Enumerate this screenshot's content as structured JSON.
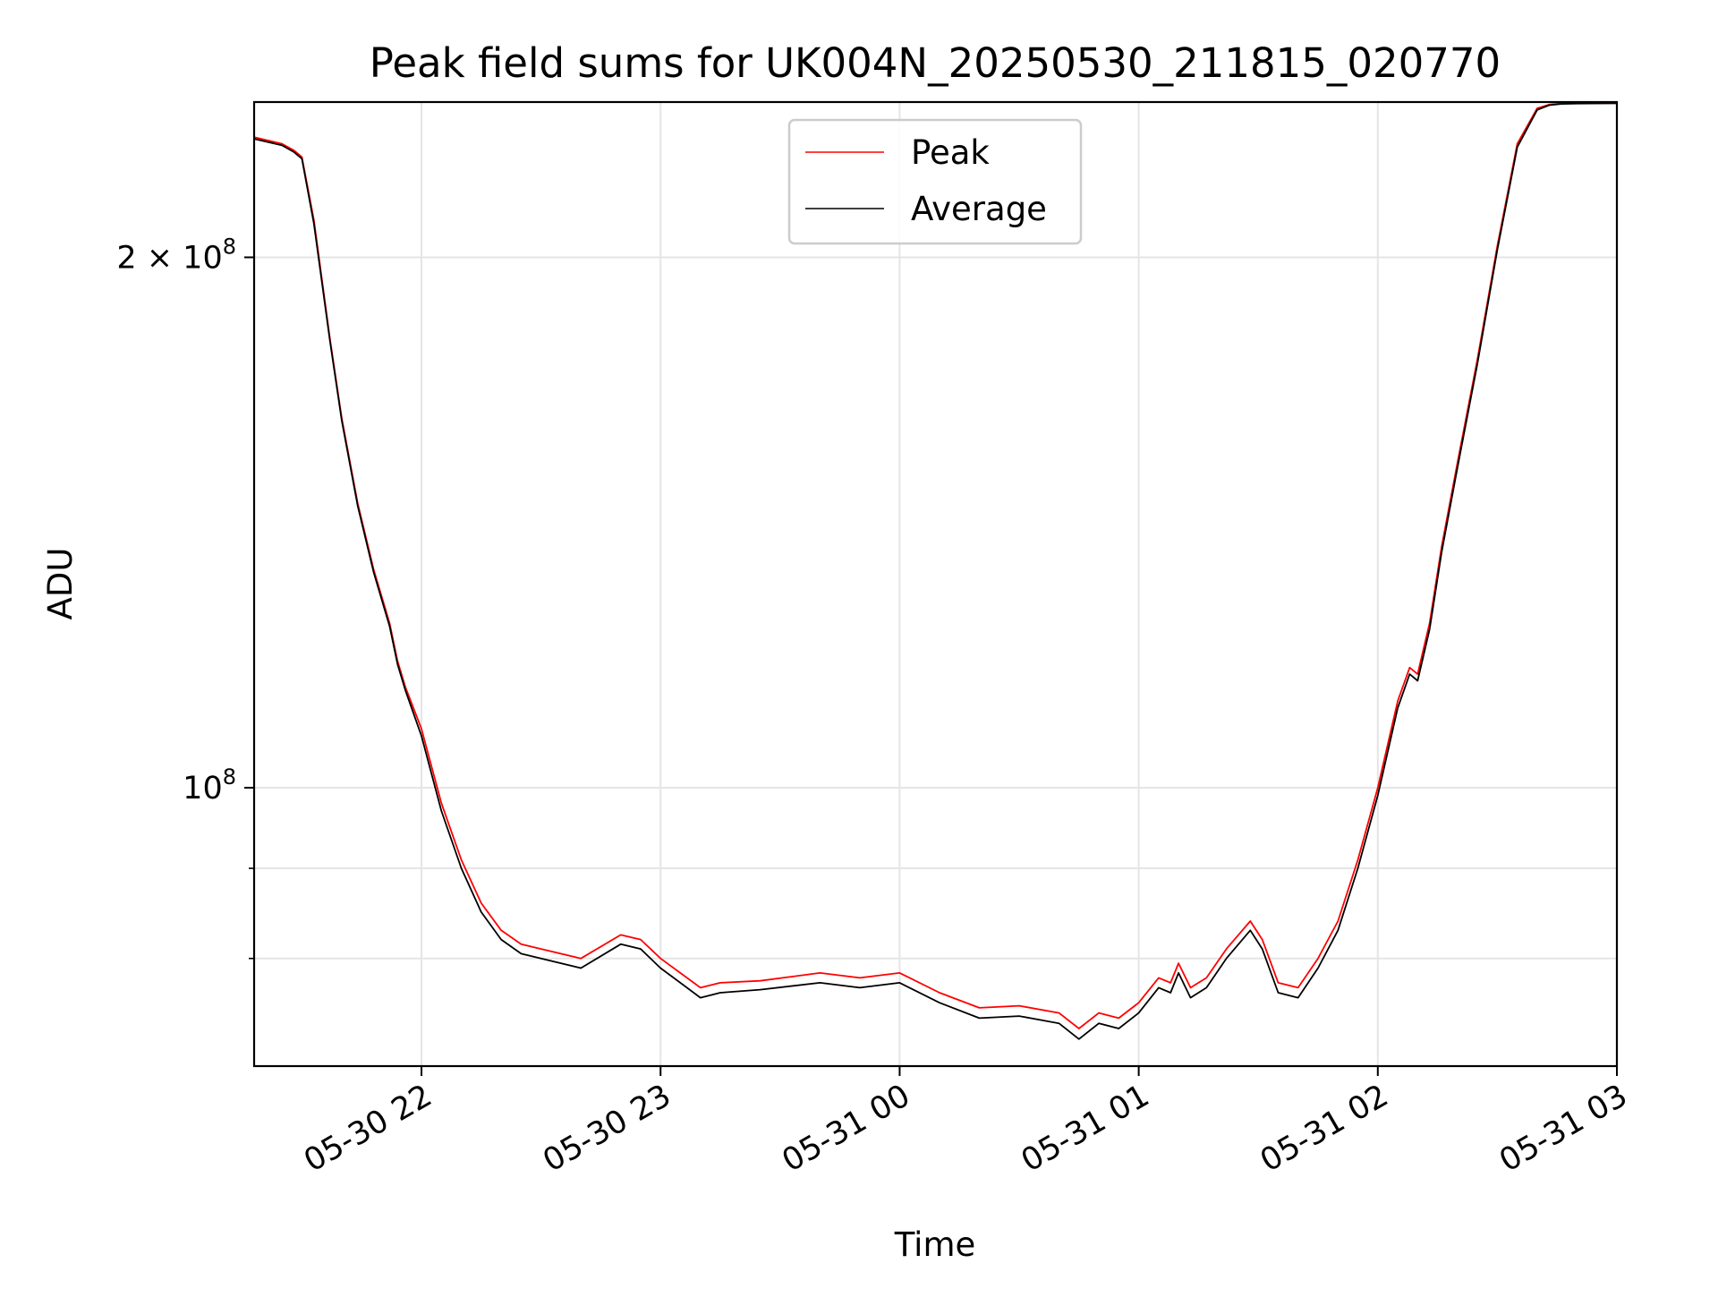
{
  "chart_data": {
    "type": "line",
    "title": "Peak field sums for UK004N_20250530_211815_020770",
    "xlabel": "Time",
    "ylabel": "ADU",
    "x_scale": "time",
    "y_scale": "log",
    "xlim": [
      "2025-05-30 21:18",
      "2025-05-31 03:00"
    ],
    "ylim": [
      69500000,
      245000000
    ],
    "x_ticks": [
      {
        "value": "2025-05-30 22:00",
        "label": "05-30 22"
      },
      {
        "value": "2025-05-30 23:00",
        "label": "05-30 23"
      },
      {
        "value": "2025-05-31 00:00",
        "label": "05-31 00"
      },
      {
        "value": "2025-05-31 01:00",
        "label": "05-31 01"
      },
      {
        "value": "2025-05-31 02:00",
        "label": "05-31 02"
      },
      {
        "value": "2025-05-31 03:00",
        "label": "05-31 03"
      }
    ],
    "y_major_ticks": [
      {
        "value": 100000000,
        "base": "10",
        "exp": "8",
        "mant": ""
      },
      {
        "value": 200000000,
        "base": "10",
        "exp": "8",
        "mant": "2 × "
      }
    ],
    "y_minor_ticks": [
      80000000,
      90000000
    ],
    "grid": true,
    "legend_position": "top-center",
    "x": [
      "2025-05-30 21:18",
      "2025-05-30 21:25",
      "2025-05-30 21:28",
      "2025-05-30 21:30",
      "2025-05-30 21:33",
      "2025-05-30 21:37",
      "2025-05-30 21:40",
      "2025-05-30 21:44",
      "2025-05-30 21:48",
      "2025-05-30 21:52",
      "2025-05-30 21:54",
      "2025-05-30 21:56",
      "2025-05-30 22:00",
      "2025-05-30 22:05",
      "2025-05-30 22:10",
      "2025-05-30 22:15",
      "2025-05-30 22:20",
      "2025-05-30 22:25",
      "2025-05-30 22:30",
      "2025-05-30 22:40",
      "2025-05-30 22:50",
      "2025-05-30 22:55",
      "2025-05-30 23:00",
      "2025-05-30 23:10",
      "2025-05-30 23:15",
      "2025-05-30 23:25",
      "2025-05-30 23:40",
      "2025-05-30 23:50",
      "2025-05-31 00:00",
      "2025-05-31 00:10",
      "2025-05-31 00:20",
      "2025-05-31 00:30",
      "2025-05-31 00:40",
      "2025-05-31 00:45",
      "2025-05-31 00:50",
      "2025-05-31 00:55",
      "2025-05-31 01:00",
      "2025-05-31 01:05",
      "2025-05-31 01:08",
      "2025-05-31 01:10",
      "2025-05-31 01:13",
      "2025-05-31 01:17",
      "2025-05-31 01:22",
      "2025-05-31 01:28",
      "2025-05-31 01:31",
      "2025-05-31 01:35",
      "2025-05-31 01:40",
      "2025-05-31 01:45",
      "2025-05-31 01:50",
      "2025-05-31 01:55",
      "2025-05-31 02:00",
      "2025-05-31 02:05",
      "2025-05-31 02:08",
      "2025-05-31 02:10",
      "2025-05-31 02:13",
      "2025-05-31 02:16",
      "2025-05-31 02:20",
      "2025-05-31 02:25",
      "2025-05-31 02:30",
      "2025-05-31 02:35",
      "2025-05-31 02:40",
      "2025-05-31 02:43",
      "2025-05-31 02:46",
      "2025-05-31 02:50",
      "2025-05-31 03:00"
    ],
    "series": [
      {
        "name": "Peak",
        "color": "#ff0000",
        "values": [
          234000000,
          232000000,
          230000000,
          228000000,
          210000000,
          180000000,
          162000000,
          145000000,
          133000000,
          124000000,
          118000000,
          114000000,
          108000000,
          98000000,
          91000000,
          86000000,
          83000000,
          81500000,
          81000000,
          80000000,
          82500000,
          82000000,
          80000000,
          77000000,
          77500000,
          77700000,
          78500000,
          78000000,
          78500000,
          76500000,
          75000000,
          75200000,
          74500000,
          73000000,
          74500000,
          74000000,
          75500000,
          78000000,
          77500000,
          79500000,
          77000000,
          78000000,
          81000000,
          84000000,
          82000000,
          77500000,
          77000000,
          80000000,
          84000000,
          91000000,
          100000000,
          112000000,
          117000000,
          116000000,
          124000000,
          137000000,
          153000000,
          175000000,
          203000000,
          232000000,
          243000000,
          244200000,
          244500000,
          244600000,
          244600000
        ]
      },
      {
        "name": "Average",
        "color": "#000000",
        "values": [
          233500000,
          231500000,
          229500000,
          227500000,
          209000000,
          179500000,
          161500000,
          144500000,
          132500000,
          123500000,
          117500000,
          113500000,
          107000000,
          97000000,
          90000000,
          85000000,
          82000000,
          80500000,
          80000000,
          79000000,
          81500000,
          81000000,
          79000000,
          76000000,
          76500000,
          76800000,
          77500000,
          77000000,
          77500000,
          75500000,
          74000000,
          74200000,
          73500000,
          72000000,
          73500000,
          73000000,
          74500000,
          77000000,
          76500000,
          78500000,
          76000000,
          77000000,
          80000000,
          83000000,
          81000000,
          76500000,
          76000000,
          79000000,
          83000000,
          90000000,
          99000000,
          111000000,
          116000000,
          115000000,
          123000000,
          136000000,
          152000000,
          174000000,
          202000000,
          231000000,
          242500000,
          244000000,
          244400000,
          244500000,
          244600000
        ]
      }
    ]
  }
}
